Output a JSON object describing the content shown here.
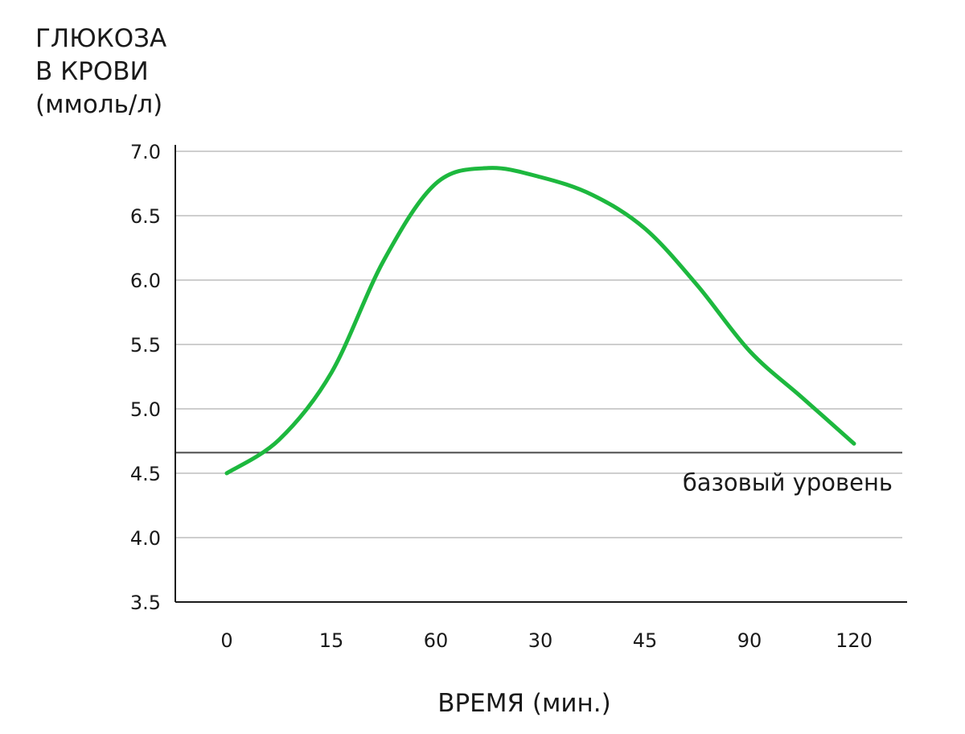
{
  "chart_data": {
    "type": "line",
    "title": "",
    "ylabel_lines": [
      "ГЛЮКОЗА",
      "В КРОВИ",
      "(ммоль/л)"
    ],
    "xlabel": "ВРЕМЯ (мин.)",
    "categories": [
      "0",
      "15",
      "60",
      "30",
      "45",
      "90",
      "120"
    ],
    "y_ticks": [
      "7.0",
      "6.5",
      "6.0",
      "5.5",
      "5.0",
      "4.5",
      "4.0",
      "3.5"
    ],
    "ylim": [
      3.5,
      7.0
    ],
    "grid": true,
    "baseline": {
      "value": 4.66,
      "label": "базовый уровень"
    },
    "series": [
      {
        "color": "#1db83e",
        "points": [
          {
            "x": 0,
            "y": 4.5
          },
          {
            "x": 0.5,
            "y": 4.76
          },
          {
            "x": 1.0,
            "y": 5.28
          },
          {
            "x": 1.5,
            "y": 6.15
          },
          {
            "x": 2.0,
            "y": 6.75
          },
          {
            "x": 2.5,
            "y": 6.87
          },
          {
            "x": 3.0,
            "y": 6.8
          },
          {
            "x": 3.5,
            "y": 6.66
          },
          {
            "x": 4.0,
            "y": 6.4
          },
          {
            "x": 4.5,
            "y": 5.96
          },
          {
            "x": 5.0,
            "y": 5.45
          },
          {
            "x": 5.5,
            "y": 5.09
          },
          {
            "x": 6.0,
            "y": 4.73
          }
        ]
      }
    ]
  }
}
